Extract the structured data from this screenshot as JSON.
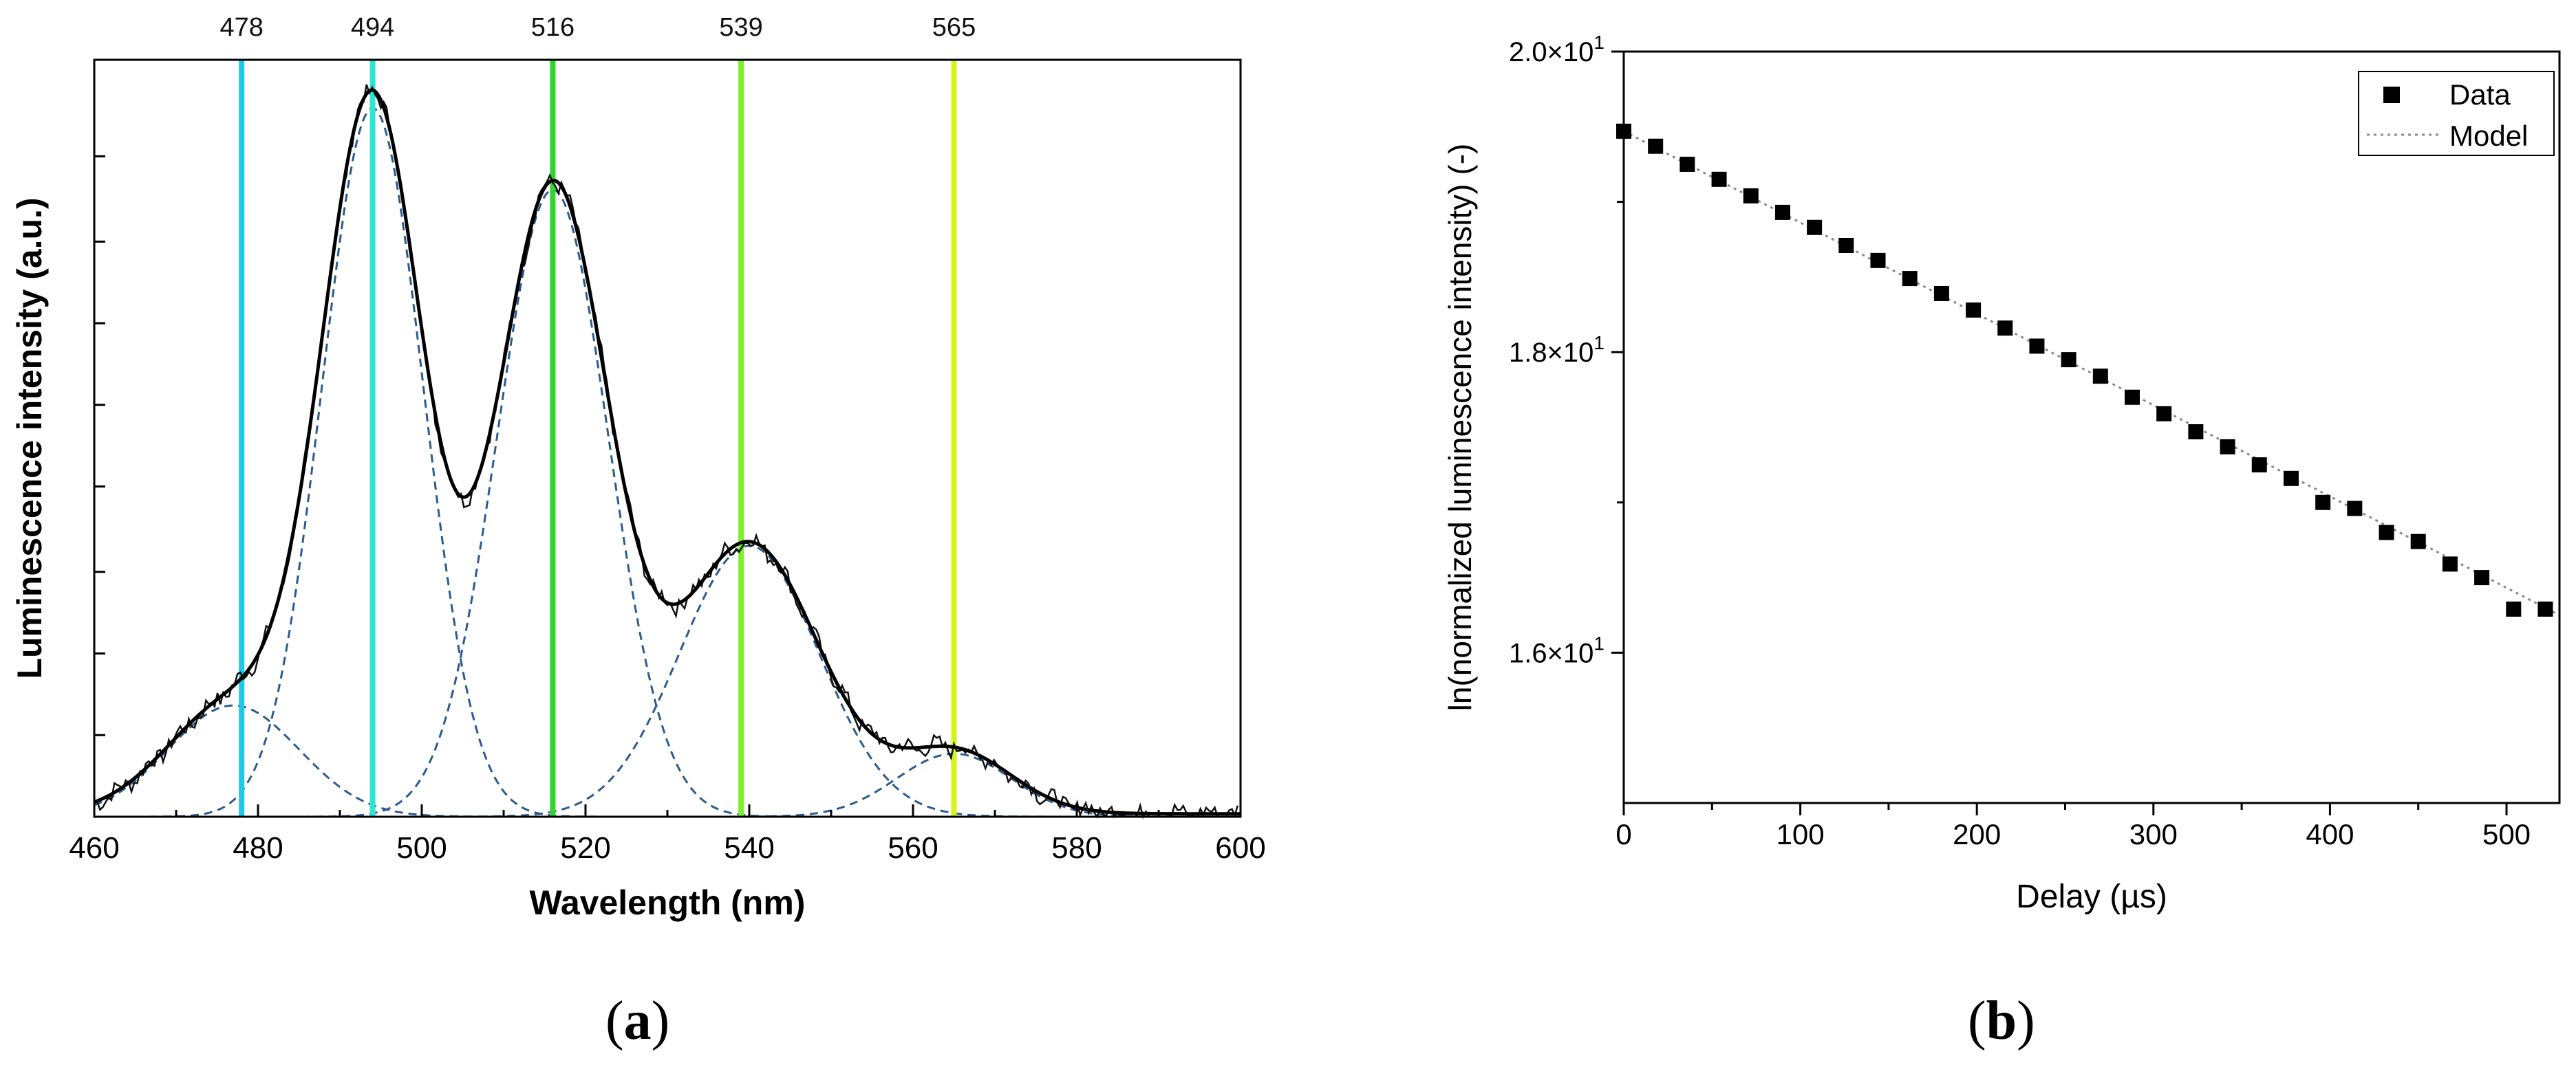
{
  "chart_data": [
    {
      "id": "a",
      "type": "line",
      "xlabel": "Wavelength (nm)",
      "ylabel": "Luminescence  intensity  (a.u.)",
      "xlim": [
        460,
        600
      ],
      "ylim": [
        0,
        1.02
      ],
      "xticks": [
        460,
        480,
        500,
        520,
        540,
        560,
        580,
        600
      ],
      "xtick_labels": [
        "460",
        "480",
        "500",
        "520",
        "540",
        "560",
        "580",
        "600"
      ],
      "yticks": [
        0.11,
        0.22,
        0.33,
        0.445,
        0.555,
        0.665,
        0.775,
        0.89
      ],
      "peak_markers": [
        {
          "wavelength": 478,
          "label": "478",
          "color": "#1ec8e6"
        },
        {
          "wavelength": 494,
          "label": "494",
          "color": "#2be6d0"
        },
        {
          "wavelength": 516,
          "label": "516",
          "color": "#2ed62e"
        },
        {
          "wavelength": 539,
          "label": "539",
          "color": "#7cf028"
        },
        {
          "wavelength": 565,
          "label": "565",
          "color": "#d4f51c"
        }
      ],
      "components": [
        {
          "center": 477,
          "amplitude": 0.15,
          "width": 8
        },
        {
          "center": 494,
          "amplitude": 0.955,
          "width": 6.2
        },
        {
          "center": 516,
          "amplitude": 0.845,
          "width": 6.8
        },
        {
          "center": 540,
          "amplitude": 0.365,
          "width": 8.5
        },
        {
          "center": 565,
          "amplitude": 0.085,
          "width": 7
        }
      ],
      "series": [
        {
          "name": "measured",
          "style": "solid-thin",
          "color": "#111111"
        },
        {
          "name": "fit",
          "style": "solid-thick",
          "color": "#000000"
        },
        {
          "name": "components",
          "style": "dashed",
          "color": "#2d5b8c"
        }
      ]
    },
    {
      "id": "b",
      "type": "scatter",
      "xlabel": "Delay (µs)",
      "ylabel": "ln(normalized luminescence intensity) (-)",
      "xlim": [
        0,
        530
      ],
      "ylim": [
        15.0,
        20.0
      ],
      "xticks": [
        0,
        100,
        200,
        300,
        400,
        500
      ],
      "xtick_labels": [
        "0",
        "100",
        "200",
        "300",
        "400",
        "500"
      ],
      "yticks": [
        16,
        18,
        20
      ],
      "ytick_labels": [
        {
          "mant": "1.6×10",
          "exp": "1"
        },
        {
          "mant": "1.8×10",
          "exp": "1"
        },
        {
          "mant": "2.0×10",
          "exp": "1"
        }
      ],
      "legend": {
        "position": "top-right",
        "entries": [
          "Data",
          "Model"
        ]
      },
      "series": [
        {
          "name": "Data",
          "marker": "square",
          "color": "#000000",
          "x": [
            0,
            18,
            36,
            54,
            72,
            90,
            108,
            126,
            144,
            162,
            180,
            198,
            216,
            234,
            252,
            270,
            288,
            306,
            324,
            342,
            360,
            378,
            396,
            414,
            432,
            450,
            468,
            486,
            504,
            522
          ],
          "y": [
            19.47,
            19.37,
            19.25,
            19.15,
            19.04,
            18.93,
            18.83,
            18.71,
            18.61,
            18.49,
            18.39,
            18.28,
            18.16,
            18.04,
            17.95,
            17.84,
            17.7,
            17.59,
            17.47,
            17.37,
            17.25,
            17.16,
            17.0,
            16.96,
            16.8,
            16.74,
            16.59,
            16.5,
            16.29,
            16.29
          ]
        },
        {
          "name": "Model",
          "type": "line",
          "style": "dotted",
          "color": "#8a8a8a",
          "x": [
            0,
            530
          ],
          "y": [
            19.47,
            16.25
          ]
        }
      ]
    }
  ],
  "captions": {
    "a": {
      "open": "(",
      "letter": "a",
      "close": ")"
    },
    "b": {
      "open": "(",
      "letter": "b",
      "close": ")"
    }
  }
}
